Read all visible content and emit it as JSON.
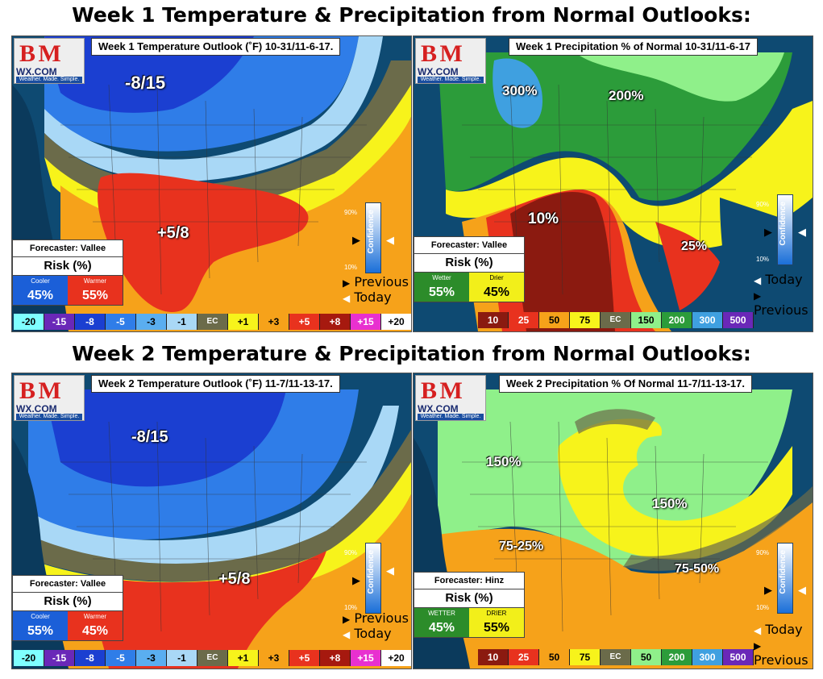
{
  "titles": {
    "week1": "Week 1 Temperature & Precipitation from Normal Outlooks:",
    "week2": "Week 2 Temperature & Precipitation from Normal Outlooks:"
  },
  "logo": {
    "top": "B M",
    "wx": "WX.COM",
    "tagline": "Weather. Made. Simple."
  },
  "confidence": {
    "label": "Confidence",
    "high": "90%",
    "low": "10%",
    "previous": "Previous",
    "today": "Today"
  },
  "panels": {
    "w1temp": {
      "header": "Week 1 Temperature Outlook (˚F) 10-31/11-6-17.",
      "contours": [
        "-8/15",
        "+5/8"
      ],
      "forecaster": "Forecaster: Vallee",
      "risk_title": "Risk (%)",
      "left_label": "Cooler",
      "right_label": "Warmer",
      "left_pct": "45%",
      "right_pct": "55%",
      "legend": [
        "-20",
        "-15",
        "-8",
        "-5",
        "-3",
        "-1",
        "EC",
        "+1",
        "+3",
        "+5",
        "+8",
        "+15",
        "+20"
      ],
      "legend_colors": [
        "#7fffff",
        "#6a28b8",
        "#1b3fd1",
        "#2f7de8",
        "#5aaef0",
        "#a9d8f6",
        "#6b6b4a",
        "#f7f31b",
        "#f6a21a",
        "#e8321e",
        "#a6190f",
        "#e830d0",
        "#ffffff"
      ]
    },
    "w1prec": {
      "header": "Week 1 Precipitation % of Normal 10-31/11-6-17",
      "contours": [
        "300%",
        "200%",
        "10%",
        "25%"
      ],
      "forecaster": "Forecaster: Vallee",
      "risk_title": "Risk (%)",
      "left_label": "Wetter",
      "right_label": "Drier",
      "left_pct": "55%",
      "right_pct": "45%",
      "legend": [
        "10",
        "25",
        "50",
        "75",
        "EC",
        "150",
        "200",
        "300",
        "500"
      ],
      "legend_colors": [
        "#8b1a10",
        "#e8321e",
        "#f6a21a",
        "#f7f31b",
        "#6b6b4a",
        "#8ff08a",
        "#2c9c3a",
        "#3fa0e0",
        "#6a28b8"
      ]
    },
    "w2temp": {
      "header": "Week 2 Temperature Outlook (˚F) 11-7/11-13-17.",
      "contours": [
        "-8/15",
        "+5/8"
      ],
      "forecaster": "Forecaster: Vallee",
      "risk_title": "Risk (%)",
      "left_label": "Cooler",
      "right_label": "Warmer",
      "left_pct": "55%",
      "right_pct": "45%",
      "legend": [
        "-20",
        "-15",
        "-8",
        "-5",
        "-3",
        "-1",
        "EC",
        "+1",
        "+3",
        "+5",
        "+8",
        "+15",
        "+20"
      ],
      "legend_colors": [
        "#7fffff",
        "#6a28b8",
        "#1b3fd1",
        "#2f7de8",
        "#5aaef0",
        "#a9d8f6",
        "#6b6b4a",
        "#f7f31b",
        "#f6a21a",
        "#e8321e",
        "#a6190f",
        "#e830d0",
        "#ffffff"
      ]
    },
    "w2prec": {
      "header": "Week 2 Precipitation % Of Normal 11-7/11-13-17.",
      "contours": [
        "150%",
        "150%",
        "75-25%",
        "75-50%"
      ],
      "forecaster": "Forecaster: Hinz",
      "risk_title": "Risk (%)",
      "left_label": "WETTER",
      "right_label": "DRIER",
      "left_pct": "45%",
      "right_pct": "55%",
      "legend": [
        "10",
        "25",
        "50",
        "75",
        "EC",
        "50",
        "200",
        "300",
        "500"
      ],
      "legend_colors": [
        "#8b1a10",
        "#e8321e",
        "#f6a21a",
        "#f7f31b",
        "#6b6b4a",
        "#8ff08a",
        "#2c9c3a",
        "#3fa0e0",
        "#6a28b8"
      ]
    }
  }
}
